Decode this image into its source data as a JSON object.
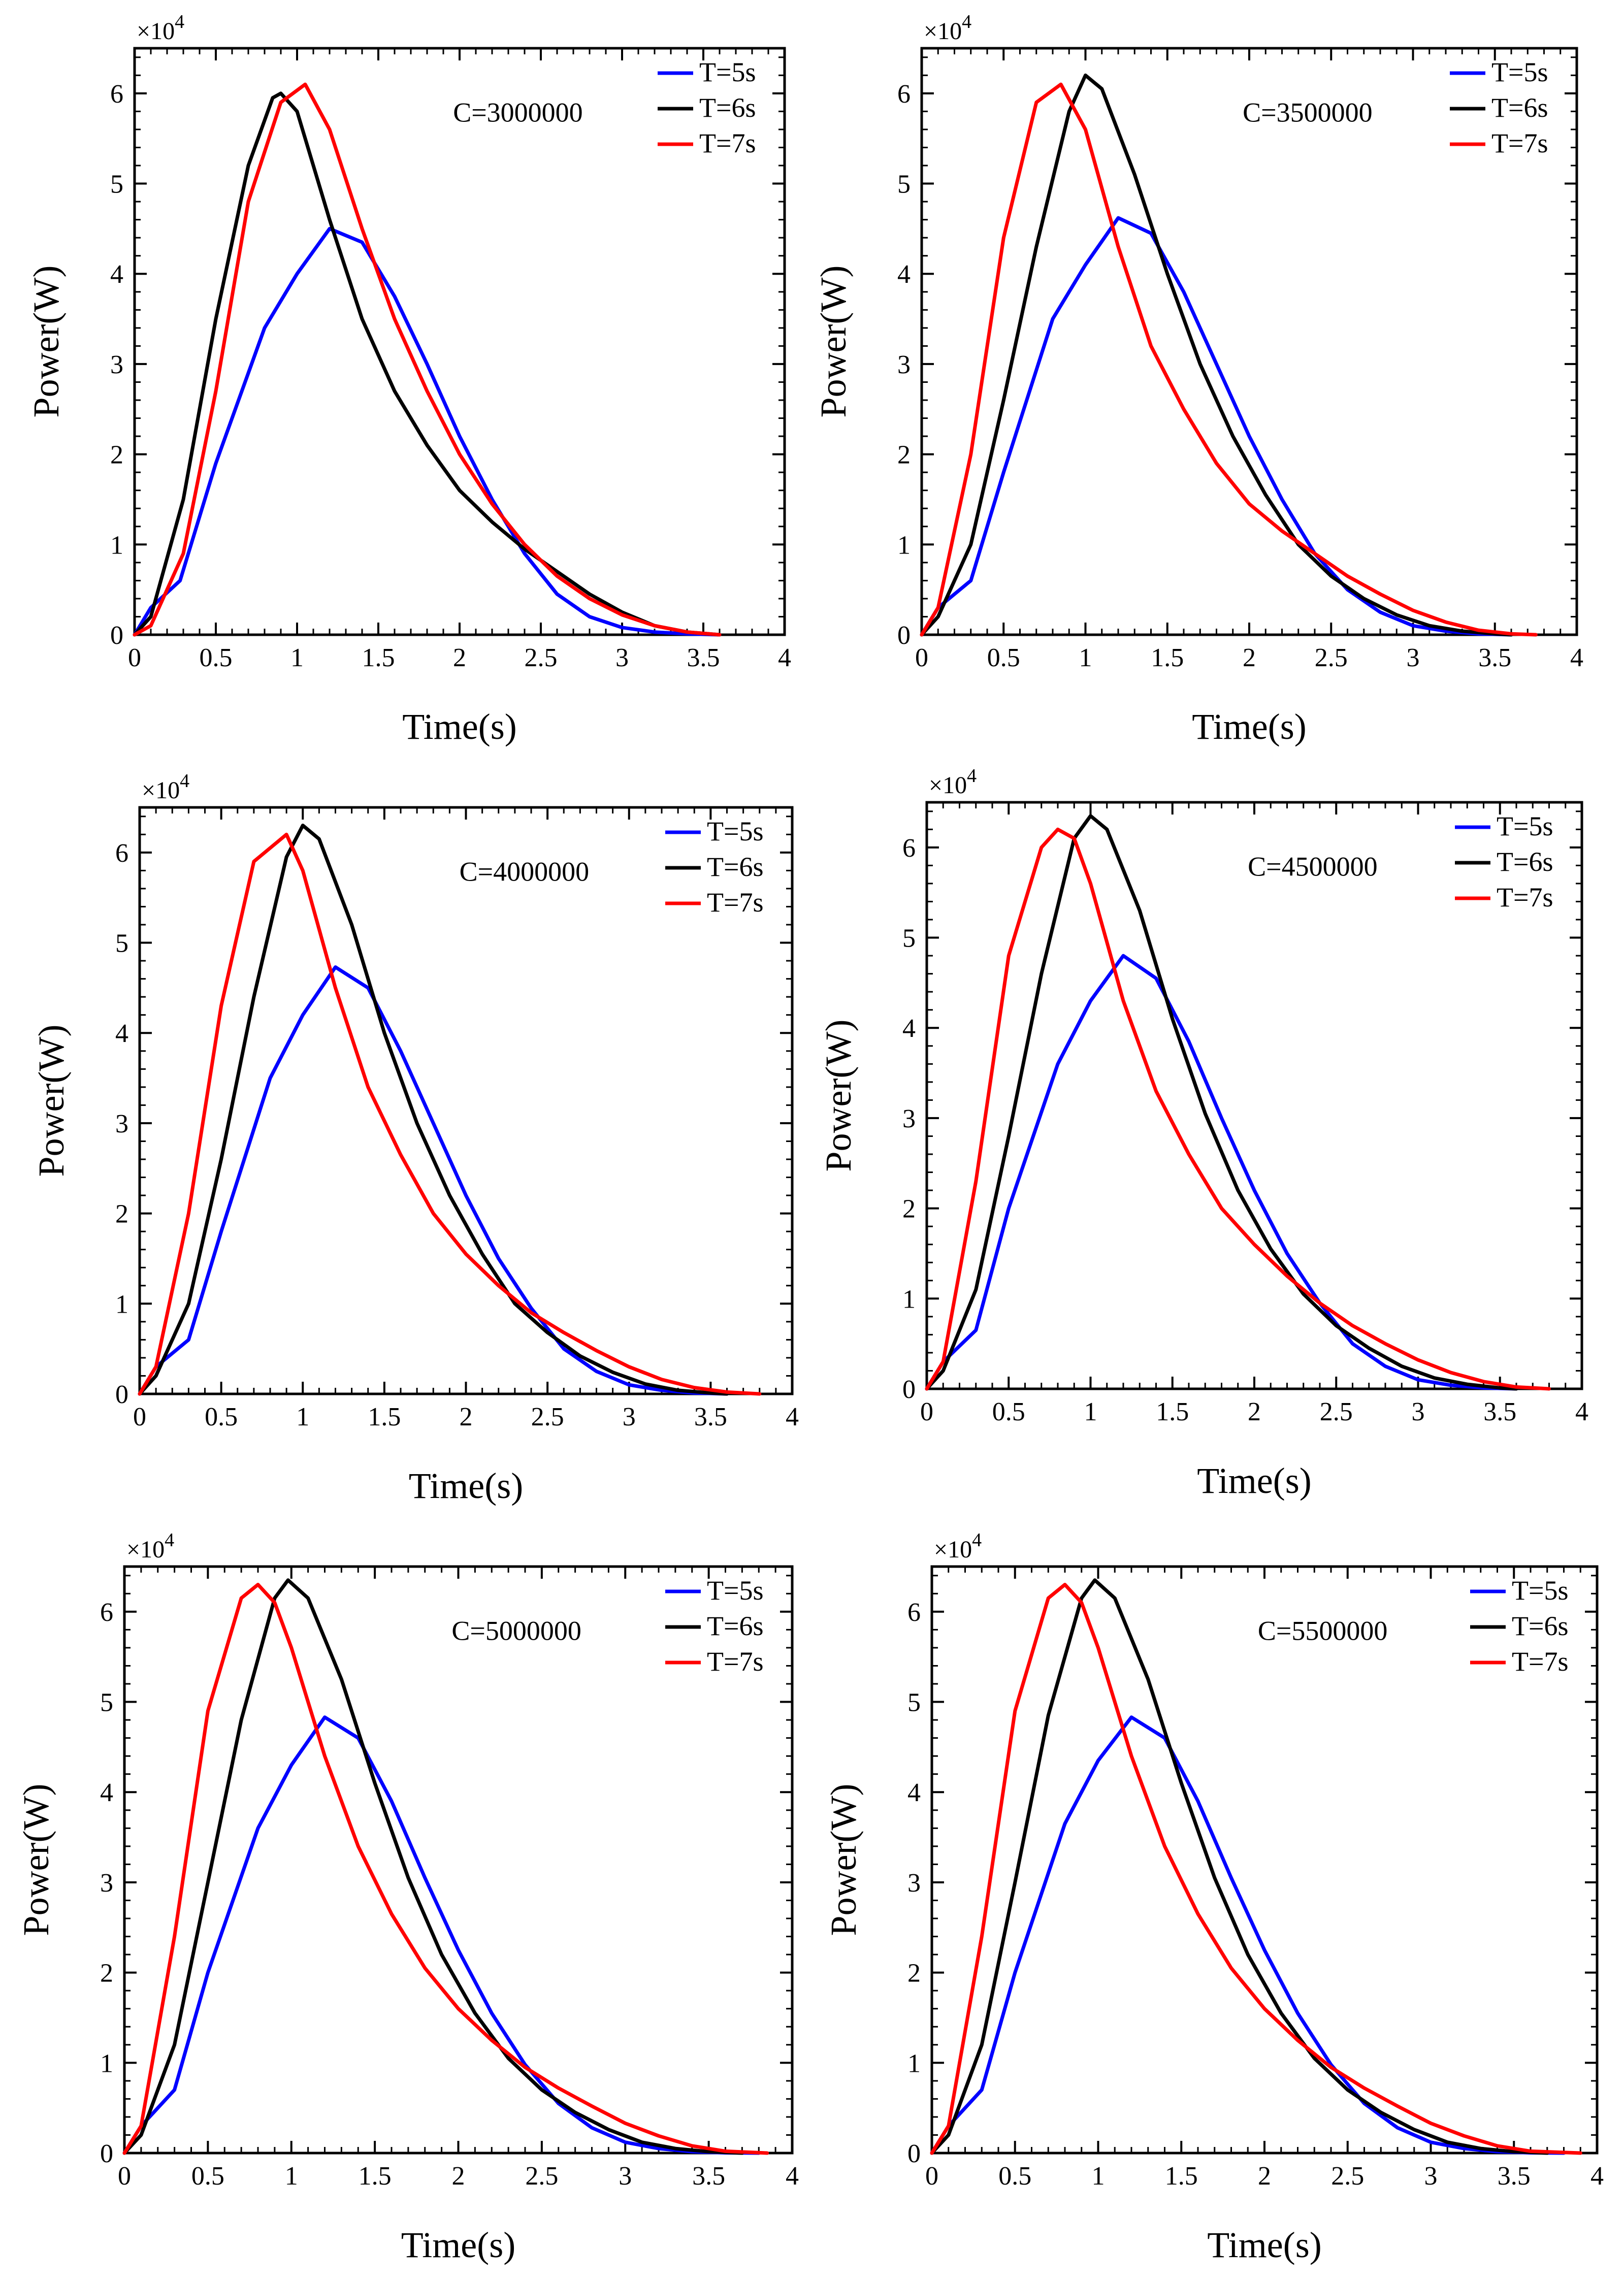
{
  "figure": {
    "xlabel": "Time(s)",
    "ylabel": "Power(W)",
    "exponent_prefix": "×10",
    "exponent_power": "4",
    "legend": [
      {
        "label": "T=5s",
        "color": "#0000FF"
      },
      {
        "label": "T=6s",
        "color": "#000000"
      },
      {
        "label": "T=7s",
        "color": "#FF0000"
      }
    ],
    "colors": {
      "axis": "#000000",
      "background": "#FFFFFF"
    }
  },
  "chart_data": [
    {
      "type": "line",
      "annotation": "C=3000000",
      "xlabel": "Time(s)",
      "ylabel": "Power(W)",
      "xlim": [
        0,
        4
      ],
      "ylim": [
        0,
        6.5
      ],
      "y_scale_note": "×10^4",
      "xticks": [
        "0",
        "0.5",
        "1",
        "1.5",
        "2",
        "2.5",
        "3",
        "3.5",
        "4"
      ],
      "yticks": [
        "0",
        "1",
        "2",
        "3",
        "4",
        "5",
        "6"
      ],
      "series": [
        {
          "name": "T=5s",
          "color": "#0000FF",
          "x": [
            0,
            0.1,
            0.28,
            0.5,
            0.8,
            1.0,
            1.2,
            1.4,
            1.6,
            1.8,
            2.0,
            2.2,
            2.4,
            2.6,
            2.8,
            3.0,
            3.2,
            3.4,
            3.6
          ],
          "y": [
            0,
            0.3,
            0.6,
            1.9,
            3.4,
            4.0,
            4.5,
            4.35,
            3.75,
            3.0,
            2.2,
            1.5,
            0.9,
            0.45,
            0.2,
            0.08,
            0.03,
            0.01,
            0
          ]
        },
        {
          "name": "T=6s",
          "color": "#000000",
          "x": [
            0,
            0.1,
            0.3,
            0.5,
            0.7,
            0.85,
            0.9,
            1.0,
            1.2,
            1.4,
            1.6,
            1.8,
            2.0,
            2.2,
            2.4,
            2.6,
            2.8,
            3.0,
            3.2,
            3.4,
            3.6
          ],
          "y": [
            0,
            0.2,
            1.5,
            3.5,
            5.2,
            5.95,
            6.0,
            5.8,
            4.6,
            3.5,
            2.7,
            2.1,
            1.6,
            1.25,
            0.95,
            0.7,
            0.45,
            0.25,
            0.1,
            0.03,
            0
          ]
        },
        {
          "name": "T=7s",
          "color": "#FF0000",
          "x": [
            0,
            0.1,
            0.3,
            0.5,
            0.7,
            0.9,
            1.05,
            1.2,
            1.4,
            1.6,
            1.8,
            2.0,
            2.2,
            2.4,
            2.6,
            2.8,
            3.0,
            3.2,
            3.4,
            3.6
          ],
          "y": [
            0,
            0.1,
            0.9,
            2.7,
            4.8,
            5.9,
            6.1,
            5.6,
            4.5,
            3.5,
            2.7,
            2.0,
            1.45,
            1.0,
            0.65,
            0.4,
            0.22,
            0.1,
            0.03,
            0
          ]
        }
      ]
    },
    {
      "type": "line",
      "annotation": "C=3500000",
      "xlabel": "Time(s)",
      "ylabel": "Power(W)",
      "xlim": [
        0,
        4
      ],
      "ylim": [
        0,
        6.5
      ],
      "y_scale_note": "×10^4",
      "xticks": [
        "0",
        "0.5",
        "1",
        "1.5",
        "2",
        "2.5",
        "3",
        "3.5",
        "4"
      ],
      "yticks": [
        "0",
        "1",
        "2",
        "3",
        "4",
        "5",
        "6"
      ],
      "series": [
        {
          "name": "T=5s",
          "color": "#0000FF",
          "x": [
            0,
            0.1,
            0.3,
            0.5,
            0.8,
            1.0,
            1.2,
            1.4,
            1.6,
            1.8,
            2.0,
            2.2,
            2.4,
            2.6,
            2.8,
            3.0,
            3.2,
            3.4,
            3.6
          ],
          "y": [
            0,
            0.3,
            0.6,
            1.8,
            3.5,
            4.1,
            4.62,
            4.45,
            3.8,
            3.0,
            2.2,
            1.5,
            0.9,
            0.5,
            0.25,
            0.1,
            0.04,
            0.01,
            0
          ]
        },
        {
          "name": "T=6s",
          "color": "#000000",
          "x": [
            0,
            0.1,
            0.3,
            0.5,
            0.7,
            0.9,
            1.0,
            1.1,
            1.3,
            1.5,
            1.7,
            1.9,
            2.1,
            2.3,
            2.5,
            2.7,
            2.9,
            3.1,
            3.3,
            3.5,
            3.6
          ],
          "y": [
            0,
            0.2,
            1.0,
            2.6,
            4.3,
            5.8,
            6.2,
            6.05,
            5.1,
            4.0,
            3.0,
            2.2,
            1.55,
            1.0,
            0.65,
            0.4,
            0.22,
            0.1,
            0.04,
            0.01,
            0
          ]
        },
        {
          "name": "T=7s",
          "color": "#FF0000",
          "x": [
            0,
            0.1,
            0.3,
            0.5,
            0.7,
            0.85,
            1.0,
            1.2,
            1.4,
            1.6,
            1.8,
            2.0,
            2.2,
            2.4,
            2.6,
            2.8,
            3.0,
            3.2,
            3.4,
            3.6,
            3.75
          ],
          "y": [
            0,
            0.3,
            2.0,
            4.4,
            5.9,
            6.1,
            5.6,
            4.3,
            3.2,
            2.5,
            1.9,
            1.45,
            1.15,
            0.9,
            0.65,
            0.45,
            0.27,
            0.14,
            0.05,
            0.01,
            0
          ]
        }
      ]
    },
    {
      "type": "line",
      "annotation": "C=4000000",
      "xlabel": "Time(s)",
      "ylabel": "Power(W)",
      "xlim": [
        0,
        4
      ],
      "ylim": [
        0,
        6.5
      ],
      "y_scale_note": "×10^4",
      "xticks": [
        "0",
        "0.5",
        "1",
        "1.5",
        "2",
        "2.5",
        "3",
        "3.5",
        "4"
      ],
      "yticks": [
        "0",
        "1",
        "2",
        "3",
        "4",
        "5",
        "6"
      ],
      "series": [
        {
          "name": "T=5s",
          "color": "#0000FF",
          "x": [
            0,
            0.1,
            0.3,
            0.5,
            0.8,
            1.0,
            1.2,
            1.4,
            1.6,
            1.8,
            2.0,
            2.2,
            2.4,
            2.6,
            2.8,
            3.0,
            3.2,
            3.4,
            3.6
          ],
          "y": [
            0,
            0.3,
            0.6,
            1.8,
            3.5,
            4.2,
            4.73,
            4.5,
            3.8,
            3.0,
            2.2,
            1.5,
            0.95,
            0.5,
            0.25,
            0.1,
            0.04,
            0.01,
            0
          ]
        },
        {
          "name": "T=6s",
          "color": "#000000",
          "x": [
            0,
            0.1,
            0.3,
            0.5,
            0.7,
            0.9,
            1.0,
            1.1,
            1.3,
            1.5,
            1.7,
            1.9,
            2.1,
            2.3,
            2.5,
            2.7,
            2.9,
            3.1,
            3.3,
            3.5,
            3.6
          ],
          "y": [
            0,
            0.2,
            1.0,
            2.6,
            4.4,
            5.95,
            6.3,
            6.15,
            5.2,
            4.0,
            3.0,
            2.2,
            1.55,
            1.0,
            0.68,
            0.42,
            0.24,
            0.11,
            0.04,
            0.01,
            0
          ]
        },
        {
          "name": "T=7s",
          "color": "#FF0000",
          "x": [
            0,
            0.1,
            0.3,
            0.5,
            0.7,
            0.9,
            1.0,
            1.2,
            1.4,
            1.6,
            1.8,
            2.0,
            2.2,
            2.4,
            2.6,
            2.8,
            3.0,
            3.2,
            3.4,
            3.6,
            3.8
          ],
          "y": [
            0,
            0.3,
            2.0,
            4.3,
            5.9,
            6.2,
            5.8,
            4.5,
            3.4,
            2.65,
            2.0,
            1.55,
            1.2,
            0.9,
            0.68,
            0.48,
            0.3,
            0.16,
            0.07,
            0.02,
            0
          ]
        }
      ]
    },
    {
      "type": "line",
      "annotation": "C=4500000",
      "xlabel": "Time(s)",
      "ylabel": "Power(W)",
      "xlim": [
        0,
        4
      ],
      "ylim": [
        0,
        6.5
      ],
      "y_scale_note": "×10^4",
      "xticks": [
        "0",
        "0.5",
        "1",
        "1.5",
        "2",
        "2.5",
        "3",
        "3.5",
        "4"
      ],
      "yticks": [
        "0",
        "1",
        "2",
        "3",
        "4",
        "5",
        "6"
      ],
      "series": [
        {
          "name": "T=5s",
          "color": "#0000FF",
          "x": [
            0,
            0.1,
            0.3,
            0.5,
            0.8,
            1.0,
            1.2,
            1.4,
            1.6,
            1.8,
            2.0,
            2.2,
            2.4,
            2.6,
            2.8,
            3.0,
            3.2,
            3.4,
            3.6
          ],
          "y": [
            0,
            0.3,
            0.65,
            2.0,
            3.6,
            4.3,
            4.8,
            4.55,
            3.85,
            3.0,
            2.2,
            1.5,
            0.95,
            0.5,
            0.25,
            0.1,
            0.04,
            0.01,
            0
          ]
        },
        {
          "name": "T=6s",
          "color": "#000000",
          "x": [
            0,
            0.1,
            0.3,
            0.5,
            0.7,
            0.9,
            1.0,
            1.1,
            1.3,
            1.5,
            1.7,
            1.9,
            2.1,
            2.3,
            2.5,
            2.7,
            2.9,
            3.1,
            3.3,
            3.5,
            3.6
          ],
          "y": [
            0,
            0.2,
            1.1,
            2.8,
            4.6,
            6.1,
            6.35,
            6.2,
            5.3,
            4.1,
            3.05,
            2.2,
            1.55,
            1.05,
            0.7,
            0.45,
            0.25,
            0.12,
            0.05,
            0.01,
            0
          ]
        },
        {
          "name": "T=7s",
          "color": "#FF0000",
          "x": [
            0,
            0.1,
            0.3,
            0.5,
            0.7,
            0.8,
            0.9,
            1.0,
            1.2,
            1.4,
            1.6,
            1.8,
            2.0,
            2.2,
            2.4,
            2.6,
            2.8,
            3.0,
            3.2,
            3.4,
            3.6,
            3.8
          ],
          "y": [
            0,
            0.3,
            2.3,
            4.8,
            6.0,
            6.2,
            6.1,
            5.6,
            4.3,
            3.3,
            2.6,
            2.0,
            1.6,
            1.25,
            0.95,
            0.7,
            0.5,
            0.32,
            0.18,
            0.08,
            0.02,
            0
          ]
        }
      ]
    },
    {
      "type": "line",
      "annotation": "C=5000000",
      "xlabel": "Time(s)",
      "ylabel": "Power(W)",
      "xlim": [
        0,
        4
      ],
      "ylim": [
        0,
        6.5
      ],
      "y_scale_note": "×10^4",
      "xticks": [
        "0",
        "0.5",
        "1",
        "1.5",
        "2",
        "2.5",
        "3",
        "3.5",
        "4"
      ],
      "yticks": [
        "0",
        "1",
        "2",
        "3",
        "4",
        "5",
        "6"
      ],
      "series": [
        {
          "name": "T=5s",
          "color": "#0000FF",
          "x": [
            0,
            0.1,
            0.3,
            0.5,
            0.8,
            1.0,
            1.2,
            1.4,
            1.6,
            1.8,
            2.0,
            2.2,
            2.4,
            2.6,
            2.8,
            3.0,
            3.2,
            3.4,
            3.6,
            3.8
          ],
          "y": [
            0,
            0.3,
            0.7,
            2.0,
            3.6,
            4.3,
            4.83,
            4.6,
            3.9,
            3.05,
            2.25,
            1.55,
            0.98,
            0.55,
            0.28,
            0.12,
            0.05,
            0.015,
            0.003,
            0
          ]
        },
        {
          "name": "T=6s",
          "color": "#000000",
          "x": [
            0,
            0.1,
            0.3,
            0.5,
            0.7,
            0.9,
            0.98,
            1.1,
            1.3,
            1.5,
            1.7,
            1.9,
            2.1,
            2.3,
            2.5,
            2.7,
            2.9,
            3.1,
            3.3,
            3.5,
            3.7
          ],
          "y": [
            0,
            0.2,
            1.2,
            3.0,
            4.8,
            6.15,
            6.35,
            6.15,
            5.25,
            4.1,
            3.05,
            2.2,
            1.55,
            1.05,
            0.7,
            0.45,
            0.26,
            0.12,
            0.05,
            0.015,
            0
          ]
        },
        {
          "name": "T=7s",
          "color": "#FF0000",
          "x": [
            0,
            0.1,
            0.3,
            0.5,
            0.7,
            0.8,
            0.9,
            1.0,
            1.2,
            1.4,
            1.6,
            1.8,
            2.0,
            2.2,
            2.4,
            2.6,
            2.8,
            3.0,
            3.2,
            3.4,
            3.6,
            3.85
          ],
          "y": [
            0,
            0.3,
            2.4,
            4.9,
            6.15,
            6.3,
            6.1,
            5.6,
            4.4,
            3.4,
            2.65,
            2.05,
            1.6,
            1.25,
            0.95,
            0.72,
            0.52,
            0.33,
            0.19,
            0.08,
            0.02,
            0
          ]
        }
      ]
    },
    {
      "type": "line",
      "annotation": "C=5500000",
      "xlabel": "Time(s)",
      "ylabel": "Power(W)",
      "xlim": [
        0,
        4
      ],
      "ylim": [
        0,
        6.5
      ],
      "y_scale_note": "×10^4",
      "xticks": [
        "0",
        "0.5",
        "1",
        "1.5",
        "2",
        "2.5",
        "3",
        "3.5",
        "4"
      ],
      "yticks": [
        "0",
        "1",
        "2",
        "3",
        "4",
        "5",
        "6"
      ],
      "series": [
        {
          "name": "T=5s",
          "color": "#0000FF",
          "x": [
            0,
            0.1,
            0.3,
            0.5,
            0.8,
            1.0,
            1.2,
            1.4,
            1.6,
            1.8,
            2.0,
            2.2,
            2.4,
            2.6,
            2.8,
            3.0,
            3.2,
            3.4,
            3.6,
            3.8
          ],
          "y": [
            0,
            0.3,
            0.7,
            2.0,
            3.65,
            4.35,
            4.83,
            4.6,
            3.9,
            3.05,
            2.25,
            1.55,
            0.98,
            0.55,
            0.28,
            0.12,
            0.05,
            0.015,
            0.003,
            0
          ]
        },
        {
          "name": "T=6s",
          "color": "#000000",
          "x": [
            0,
            0.1,
            0.3,
            0.5,
            0.7,
            0.9,
            0.98,
            1.1,
            1.3,
            1.5,
            1.7,
            1.9,
            2.1,
            2.3,
            2.5,
            2.7,
            2.9,
            3.1,
            3.3,
            3.5,
            3.7
          ],
          "y": [
            0,
            0.2,
            1.2,
            3.0,
            4.85,
            6.15,
            6.35,
            6.15,
            5.25,
            4.1,
            3.05,
            2.2,
            1.55,
            1.05,
            0.7,
            0.45,
            0.26,
            0.12,
            0.05,
            0.015,
            0
          ]
        },
        {
          "name": "T=7s",
          "color": "#FF0000",
          "x": [
            0,
            0.1,
            0.3,
            0.5,
            0.7,
            0.8,
            0.9,
            1.0,
            1.2,
            1.4,
            1.6,
            1.8,
            2.0,
            2.2,
            2.4,
            2.6,
            2.8,
            3.0,
            3.2,
            3.4,
            3.6,
            3.9
          ],
          "y": [
            0,
            0.3,
            2.4,
            4.9,
            6.15,
            6.3,
            6.1,
            5.6,
            4.4,
            3.4,
            2.65,
            2.05,
            1.6,
            1.25,
            0.95,
            0.72,
            0.52,
            0.33,
            0.19,
            0.08,
            0.02,
            0
          ]
        }
      ]
    }
  ]
}
